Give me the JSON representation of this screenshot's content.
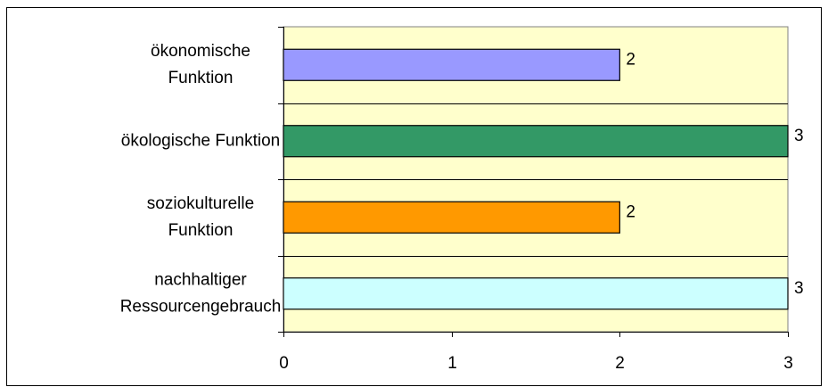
{
  "chart_data": {
    "type": "bar",
    "orientation": "horizontal",
    "categories": [
      [
        "ökonomische",
        "Funktion"
      ],
      [
        "ökologische Funktion"
      ],
      [
        "soziokulturelle",
        "Funktion"
      ],
      [
        "nachhaltiger",
        "Ressourcengebrauch"
      ]
    ],
    "values": [
      2,
      3,
      2,
      3
    ],
    "bar_colors": [
      "#9999ff",
      "#339966",
      "#ff9900",
      "#ccffff"
    ],
    "data_labels": [
      "2",
      "3",
      "2",
      "3"
    ],
    "xlim": [
      0,
      3
    ],
    "x_ticks": [
      "0",
      "1",
      "2",
      "3"
    ],
    "grid": "horizontal category separators",
    "plot_background": "#ffffcc",
    "legend": "none"
  }
}
